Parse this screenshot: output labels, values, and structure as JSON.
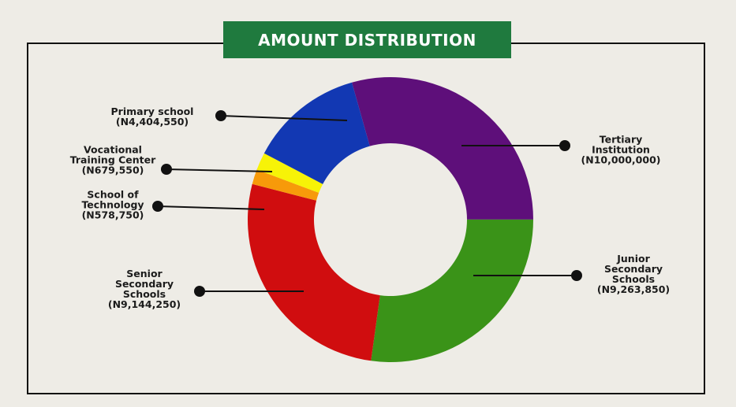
{
  "chart_data": {
    "type": "pie",
    "title": "AMOUNT DISTRIBUTION",
    "categories": [
      "Tertiary Institution",
      "Junior Secondary Schools",
      "Senior Secondary Schools",
      "School of Technology",
      "Vocational Training Center",
      "Primary school"
    ],
    "values": [
      10000000,
      9263850,
      9144250,
      578750,
      679550,
      4404550
    ],
    "value_labels": [
      "(N10,000,000)",
      "(N9,263,850)",
      "(N9,144,250)",
      "(N578,750)",
      "(N679,550)",
      "(N4,404,550)"
    ],
    "colors": [
      "#5e0f7a",
      "#3a9318",
      "#d00d0f",
      "#f79a0a",
      "#f7f307",
      "#1238b3"
    ]
  }
}
